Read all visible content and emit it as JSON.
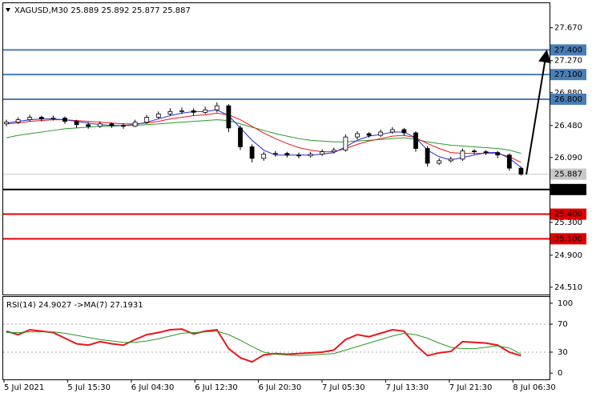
{
  "chart_data": [
    {
      "type": "candlestick",
      "title": "XAGUSD,M30  25.889 25.892 25.877 25.887",
      "ylim": [
        24.45,
        27.95
      ],
      "yticks": [
        {
          "value": 27.67,
          "label": "27.670"
        },
        {
          "value": 27.27,
          "label": "27.270"
        },
        {
          "value": 26.88,
          "label": "26.880"
        },
        {
          "value": 26.48,
          "label": "26.480"
        },
        {
          "value": 26.09,
          "label": "26.090"
        },
        {
          "value": 25.7,
          "label": "25.700"
        },
        {
          "value": 25.3,
          "label": "25.300"
        },
        {
          "value": 24.9,
          "label": "24.900"
        },
        {
          "value": 24.51,
          "label": "24.510"
        }
      ],
      "candles": [
        [
          26.5,
          26.55,
          26.47,
          26.52
        ],
        [
          26.52,
          26.58,
          26.5,
          26.55
        ],
        [
          26.55,
          26.61,
          26.53,
          26.58
        ],
        [
          26.58,
          26.6,
          26.53,
          26.56
        ],
        [
          26.56,
          26.6,
          26.54,
          26.57
        ],
        [
          26.57,
          26.59,
          26.5,
          26.53
        ],
        [
          26.53,
          26.55,
          26.45,
          26.49
        ],
        [
          26.49,
          26.52,
          26.44,
          26.47
        ],
        [
          26.47,
          26.53,
          26.45,
          26.5
        ],
        [
          26.5,
          26.52,
          26.45,
          26.48
        ],
        [
          26.48,
          26.51,
          26.44,
          26.47
        ],
        [
          26.47,
          26.55,
          26.46,
          26.52
        ],
        [
          26.52,
          26.61,
          26.5,
          26.58
        ],
        [
          26.58,
          26.65,
          26.56,
          26.62
        ],
        [
          26.62,
          26.69,
          26.6,
          26.65
        ],
        [
          26.65,
          26.7,
          26.62,
          26.66
        ],
        [
          26.66,
          26.69,
          26.6,
          26.64
        ],
        [
          26.64,
          26.71,
          26.62,
          26.67
        ],
        [
          26.67,
          26.76,
          26.64,
          26.72
        ],
        [
          26.72,
          26.74,
          26.4,
          26.45
        ],
        [
          26.45,
          26.48,
          26.18,
          26.22
        ],
        [
          26.22,
          26.25,
          26.03,
          26.08
        ],
        [
          26.08,
          26.16,
          26.05,
          26.13
        ],
        [
          26.13,
          26.17,
          26.1,
          26.14
        ],
        [
          26.14,
          26.16,
          26.09,
          26.12
        ],
        [
          26.12,
          26.15,
          26.08,
          26.11
        ],
        [
          26.11,
          26.16,
          26.09,
          26.13
        ],
        [
          26.13,
          26.19,
          26.11,
          26.16
        ],
        [
          26.16,
          26.21,
          26.14,
          26.18
        ],
        [
          26.18,
          26.37,
          26.16,
          26.34
        ],
        [
          26.34,
          26.41,
          26.31,
          26.38
        ],
        [
          26.38,
          26.4,
          26.33,
          26.36
        ],
        [
          26.36,
          26.43,
          26.34,
          26.4
        ],
        [
          26.4,
          26.46,
          26.38,
          26.43
        ],
        [
          26.43,
          26.45,
          26.36,
          26.39
        ],
        [
          26.39,
          26.41,
          26.16,
          26.2
        ],
        [
          26.2,
          26.23,
          25.98,
          26.02
        ],
        [
          26.02,
          26.08,
          26.0,
          26.05
        ],
        [
          26.05,
          26.1,
          26.03,
          26.07
        ],
        [
          26.07,
          26.2,
          26.05,
          26.17
        ],
        [
          26.17,
          26.19,
          26.13,
          26.16
        ],
        [
          26.16,
          26.18,
          26.12,
          26.15
        ],
        [
          26.15,
          26.17,
          26.08,
          26.12
        ],
        [
          26.12,
          26.14,
          25.93,
          25.96
        ],
        [
          25.96,
          25.98,
          25.87,
          25.887
        ]
      ],
      "series": [
        {
          "color": "#2a9a2a",
          "values": [
            26.33,
            26.36,
            26.38,
            26.4,
            26.42,
            26.44,
            26.45,
            26.46,
            26.47,
            26.47,
            26.48,
            26.48,
            26.49,
            26.5,
            26.51,
            26.52,
            26.53,
            26.54,
            26.55,
            26.54,
            26.5,
            26.46,
            26.42,
            26.38,
            26.35,
            26.32,
            26.3,
            26.29,
            26.28,
            26.28,
            26.29,
            26.3,
            26.31,
            26.32,
            26.33,
            26.31,
            26.28,
            26.26,
            26.24,
            26.23,
            26.22,
            26.21,
            26.2,
            26.18,
            26.14
          ]
        },
        {
          "color": "#e8161b",
          "values": [
            26.5,
            26.51,
            26.53,
            26.54,
            26.55,
            26.55,
            26.54,
            26.53,
            26.52,
            26.51,
            26.5,
            26.5,
            26.51,
            26.53,
            26.56,
            26.58,
            26.6,
            26.61,
            26.63,
            26.61,
            26.55,
            26.47,
            26.39,
            26.32,
            26.26,
            26.21,
            26.18,
            26.16,
            26.16,
            26.2,
            26.25,
            26.29,
            26.32,
            26.35,
            26.36,
            26.33,
            26.26,
            26.2,
            26.15,
            26.14,
            26.14,
            26.14,
            26.14,
            26.1,
            26.03
          ]
        },
        {
          "color": "#2b2bd9",
          "values": [
            26.51,
            26.53,
            26.55,
            26.56,
            26.56,
            26.55,
            26.53,
            26.51,
            26.49,
            26.48,
            26.48,
            26.49,
            26.52,
            26.56,
            26.6,
            26.63,
            26.65,
            26.65,
            26.67,
            26.6,
            26.45,
            26.3,
            26.18,
            26.12,
            26.12,
            26.12,
            26.12,
            26.13,
            26.15,
            26.22,
            26.3,
            26.35,
            26.37,
            26.4,
            26.4,
            26.33,
            26.18,
            26.1,
            26.06,
            26.09,
            26.12,
            26.15,
            26.15,
            26.08,
            25.97
          ]
        }
      ],
      "levels": [
        {
          "value": 27.4,
          "label": "27.400",
          "color": "#4a7eb5"
        },
        {
          "value": 27.1,
          "label": "27.100",
          "color": "#4a7eb5"
        },
        {
          "value": 26.8,
          "label": "26.800",
          "color": "#4a7eb5"
        },
        {
          "value": 25.887,
          "label": "25.887",
          "color": "#c8c8c8"
        },
        {
          "value": 25.7,
          "label": "25.700",
          "color": "#000000"
        },
        {
          "value": 25.4,
          "label": "25.400",
          "color": "#e00000"
        },
        {
          "value": 25.1,
          "label": "25.100",
          "color": "#e00000"
        }
      ]
    },
    {
      "type": "line",
      "title": "RSI(14) 24.9027  ->MA(7) 27.1931",
      "ylim": [
        -9,
        109
      ],
      "yticks": [
        100,
        70,
        30,
        0
      ],
      "dotted_levels": [
        70,
        30
      ],
      "series": [
        {
          "color": "#e8161b",
          "values": [
            60,
            55,
            62,
            60,
            58,
            50,
            42,
            40,
            45,
            42,
            40,
            48,
            55,
            58,
            62,
            63,
            56,
            60,
            62,
            35,
            22,
            16,
            26,
            28,
            27,
            28,
            29,
            30,
            33,
            48,
            55,
            52,
            57,
            62,
            60,
            40,
            25,
            29,
            31,
            45,
            44,
            43,
            40,
            30,
            24.9027
          ]
        },
        {
          "color": "#2a9a2a",
          "values": [
            58,
            58,
            59,
            59,
            59,
            57,
            54,
            51,
            48,
            46,
            44,
            44,
            46,
            49,
            53,
            57,
            58,
            59,
            60,
            55,
            47,
            38,
            30,
            27,
            26,
            25,
            26,
            27,
            28,
            33,
            38,
            43,
            48,
            53,
            57,
            55,
            50,
            43,
            37,
            35,
            35,
            37,
            39,
            36,
            27.1931
          ]
        }
      ],
      "time_labels": [
        "5 Jul 2021",
        "5 Jul 15:30",
        "6 Jul 04:30",
        "6 Jul 12:30",
        "6 Jul 20:30",
        "7 Jul 05:30",
        "7 Jul 13:30",
        "7 Jul 21:30",
        "8 Jul 06:30"
      ]
    }
  ]
}
